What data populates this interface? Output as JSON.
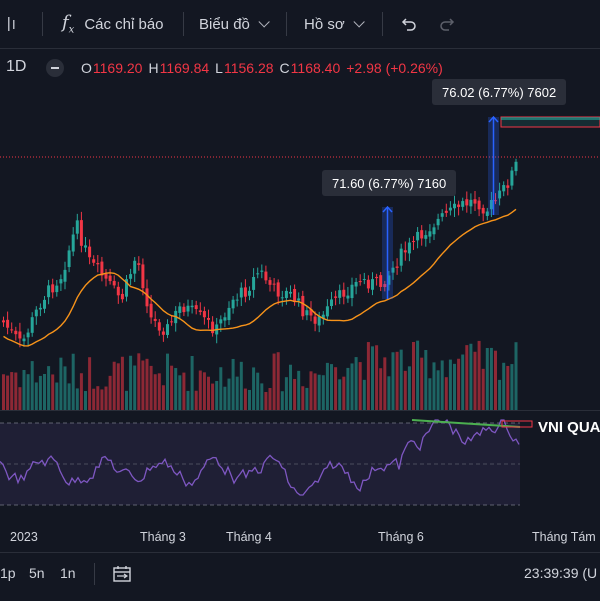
{
  "toolbar": {
    "indicators_icon": "function-fx-icon",
    "indicators_label": "Các chỉ báo",
    "chart_label": "Biểu đồ",
    "profile_label": "Hồ sơ",
    "undo_icon": "undo-icon",
    "redo_icon": "redo-icon"
  },
  "legend": {
    "timeframe": "1D",
    "o_label": "O",
    "o_value": "1169.20",
    "h_label": "H",
    "h_value": "1169.84",
    "l_label": "L",
    "l_value": "1156.28",
    "c_label": "C",
    "c_value": "1168.40",
    "change": "+2.98 (+0.26%)"
  },
  "measures": [
    {
      "text": "71.60 (6.77%) 7160"
    },
    {
      "text": "76.02 (6.77%) 7602"
    }
  ],
  "rsi": {
    "label": "VNI QUA"
  },
  "x_axis": {
    "labels": [
      "2023",
      "Tháng 3",
      "Tháng 4",
      "Tháng 6",
      "Tháng Tám"
    ]
  },
  "bottom_bar": {
    "ranges": [
      "1p",
      "5n",
      "1n"
    ],
    "date_range_icon": "calendar-range-icon",
    "clock": "23:39:39 (U"
  },
  "colors": {
    "up": "#26a69a",
    "down": "#f23645",
    "ma": "#f7931a",
    "rsi": "#7e57c2",
    "measure": "#2962ff"
  }
}
